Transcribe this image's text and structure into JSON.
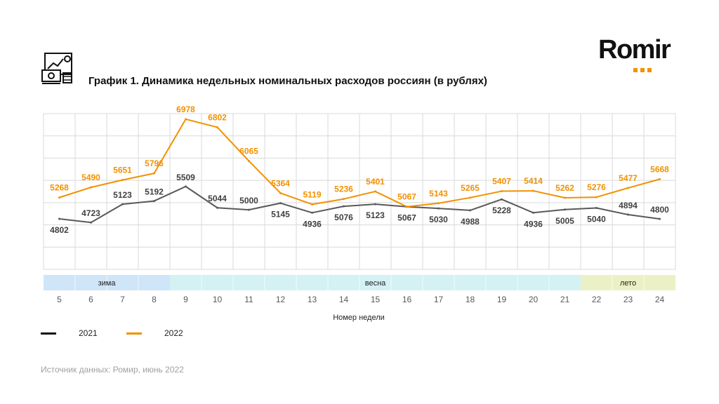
{
  "title": "График 1. Динамика недельных номинальных расходов россиян (в рублях)",
  "logo": {
    "text": "Romir"
  },
  "source": "Источник данных: Ромир, июнь 2022",
  "colors": {
    "series_2021": "#595959",
    "series_2022": "#f29100",
    "winter": "#cfe5f8",
    "spring": "#d4f1f4",
    "summer": "#ecf1c5",
    "grid": "#d9d9d9",
    "logo_accent": "#f29100"
  },
  "chart_data": {
    "type": "line",
    "xlabel": "Номер недели",
    "ylabel": "",
    "grid": true,
    "ylim": [
      3700,
      7100
    ],
    "categories": [
      "5",
      "6",
      "7",
      "8",
      "9",
      "10",
      "11",
      "12",
      "13",
      "14",
      "15",
      "16",
      "17",
      "18",
      "19",
      "20",
      "21",
      "22",
      "23",
      "24"
    ],
    "series": [
      {
        "name": "2021",
        "values": [
          4802,
          4723,
          5123,
          5192,
          5509,
          5044,
          5000,
          5145,
          4936,
          5076,
          5123,
          5067,
          5030,
          4988,
          5228,
          4936,
          5005,
          5040,
          4894,
          4800
        ]
      },
      {
        "name": "2022",
        "values": [
          5268,
          5490,
          5651,
          5796,
          6978,
          6802,
          6065,
          5364,
          5119,
          5236,
          5401,
          5067,
          5143,
          5265,
          5407,
          5414,
          5262,
          5276,
          5477,
          5668
        ]
      }
    ],
    "seasons": [
      {
        "label": "зима",
        "from_week": "5",
        "to_week": "8"
      },
      {
        "label": "весна",
        "from_week": "9",
        "to_week": "21"
      },
      {
        "label": "лето",
        "from_week": "22",
        "to_week": "24"
      }
    ],
    "legend": [
      "2021",
      "2022"
    ],
    "legend_position": "bottom-left"
  }
}
